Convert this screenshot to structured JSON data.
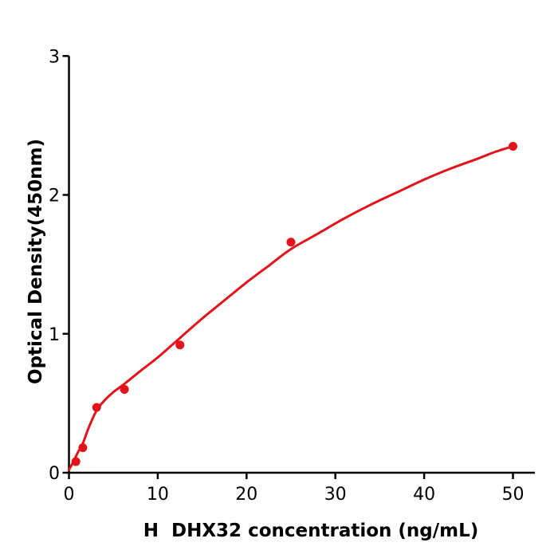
{
  "chart_data": {
    "type": "scatter",
    "title": "",
    "xlabel": "H  DHX32 concentration (ng/mL)",
    "ylabel": "Optical Density(450nm)",
    "xlim": [
      0,
      52.5
    ],
    "ylim": [
      0,
      3
    ],
    "x_ticks": [
      0,
      10,
      20,
      30,
      40,
      50
    ],
    "y_ticks": [
      0,
      1,
      2,
      3
    ],
    "grid": false,
    "legend": "none",
    "axis_color": "#000000",
    "point_color": "#e3121b",
    "line_color": "#e3121b",
    "series": [
      {
        "name": "standard-data-points",
        "type": "scatter",
        "x": [
          0.78,
          1.56,
          3.12,
          6.25,
          12.5,
          25,
          50
        ],
        "y": [
          0.08,
          0.18,
          0.47,
          0.6,
          0.92,
          1.66,
          2.35
        ]
      },
      {
        "name": "fitted-curve",
        "type": "line",
        "x": [
          0,
          0.5,
          1,
          1.56,
          2.2,
          3.12,
          4,
          5,
          6.25,
          8,
          10,
          12.5,
          15,
          17.5,
          20,
          22.5,
          25,
          28,
          31,
          34,
          37,
          40,
          43,
          46,
          48,
          50
        ],
        "y": [
          0.02,
          0.08,
          0.145,
          0.21,
          0.32,
          0.45,
          0.52,
          0.58,
          0.64,
          0.73,
          0.83,
          0.97,
          1.11,
          1.24,
          1.37,
          1.49,
          1.61,
          1.72,
          1.83,
          1.93,
          2.02,
          2.11,
          2.19,
          2.26,
          2.31,
          2.35
        ]
      }
    ]
  }
}
